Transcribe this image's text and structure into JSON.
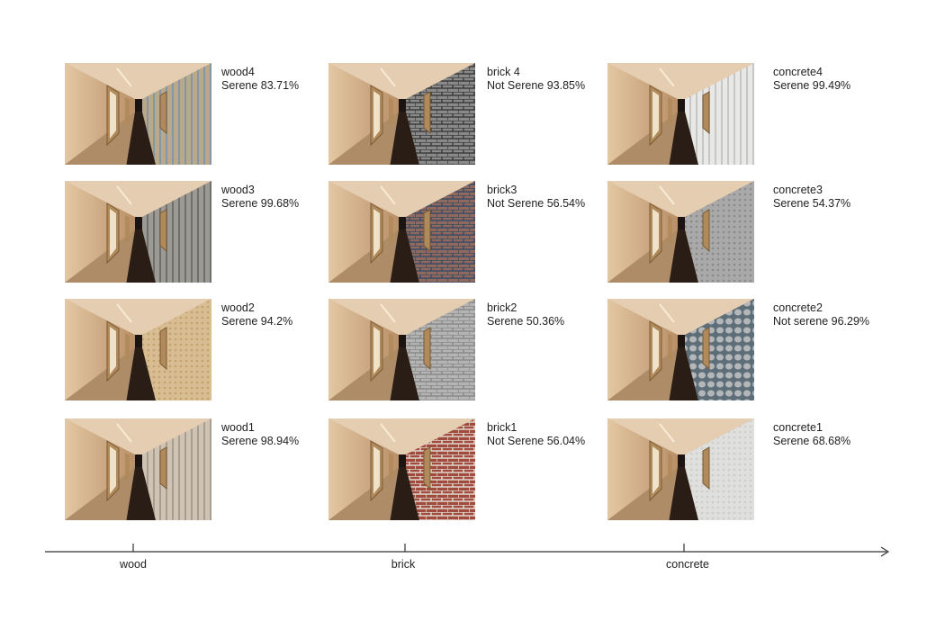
{
  "columns": [
    {
      "axis_label": "wood",
      "items": [
        {
          "name": "wood4",
          "result": "Serene 83.71%",
          "texture": "wood-blue"
        },
        {
          "name": "wood3",
          "result": "Serene 99.68%",
          "texture": "wood-gray"
        },
        {
          "name": "wood2",
          "result": "Serene 94.2%",
          "texture": "wood-beige"
        },
        {
          "name": "wood1",
          "result": "Serene 98.94%",
          "texture": "wood-pale"
        }
      ]
    },
    {
      "axis_label": "brick",
      "items": [
        {
          "name": "brick 4",
          "result": "Not Serene 93.85%",
          "texture": "brick-dark"
        },
        {
          "name": "brick3",
          "result": "Not Serene 56.54%",
          "texture": "brick-mixed"
        },
        {
          "name": "brick2",
          "result": "Serene 50.36%",
          "texture": "brick-gray"
        },
        {
          "name": "brick1",
          "result": "Not Serene 56.04%",
          "texture": "brick-red"
        }
      ]
    },
    {
      "axis_label": "concrete",
      "items": [
        {
          "name": "concrete4",
          "result": "Serene 99.49%",
          "texture": "concrete-white"
        },
        {
          "name": "concrete3",
          "result": "Serene 54.37%",
          "texture": "concrete-gray"
        },
        {
          "name": "concrete2",
          "result": "Not serene 96.29%",
          "texture": "concrete-stone"
        },
        {
          "name": "concrete1",
          "result": "Serene 68.68%",
          "texture": "concrete-light"
        }
      ]
    }
  ],
  "colors": {
    "wall": "#d2ae86",
    "floor": "#2a1d16",
    "frame": "#b08a5a"
  }
}
